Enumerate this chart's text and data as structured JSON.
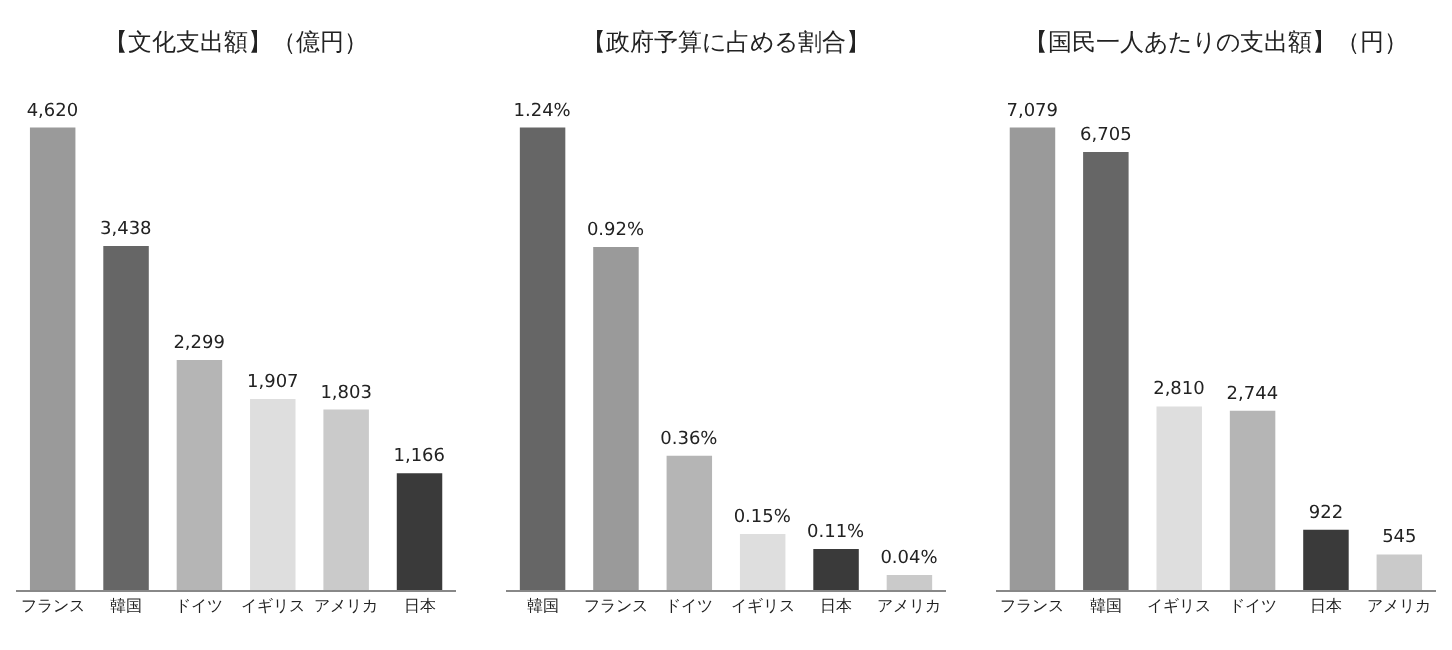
{
  "chart_data": [
    {
      "type": "bar",
      "title": "【文化支出額】（億円）",
      "categories": [
        "フランス",
        "韓国",
        "ドイツ",
        "イギリス",
        "アメリカ",
        "日本"
      ],
      "values": [
        4620,
        3438,
        2299,
        1907,
        1803,
        1166
      ],
      "colors": [
        "#9a9a9a",
        "#666666",
        "#b5b5b5",
        "#dedede",
        "#cacaca",
        "#3a3a3a"
      ],
      "value_labels": [
        "4,620",
        "3,438",
        "2,299",
        "1,907",
        "1,803",
        "1,166"
      ]
    },
    {
      "type": "bar",
      "title": "【政府予算に占める割合】",
      "categories": [
        "韓国",
        "フランス",
        "ドイツ",
        "イギリス",
        "日本",
        "アメリカ"
      ],
      "values": [
        1.24,
        0.92,
        0.36,
        0.15,
        0.11,
        0.04
      ],
      "colors": [
        "#666666",
        "#9a9a9a",
        "#b5b5b5",
        "#dedede",
        "#3a3a3a",
        "#cacaca"
      ],
      "value_labels": [
        "1.24%",
        "0.92%",
        "0.36%",
        "0.15%",
        "0.11%",
        "0.04%"
      ]
    },
    {
      "type": "bar",
      "title": "【国民一人あたりの支出額】（円）",
      "categories": [
        "フランス",
        "韓国",
        "イギリス",
        "ドイツ",
        "日本",
        "アメリカ"
      ],
      "values": [
        7079,
        6705,
        2810,
        2744,
        922,
        545
      ],
      "colors": [
        "#9a9a9a",
        "#666666",
        "#dedede",
        "#b5b5b5",
        "#3a3a3a",
        "#cacaca"
      ],
      "value_labels": [
        "7,079",
        "6,705",
        "2,810",
        "2,744",
        "922",
        "545"
      ]
    }
  ]
}
